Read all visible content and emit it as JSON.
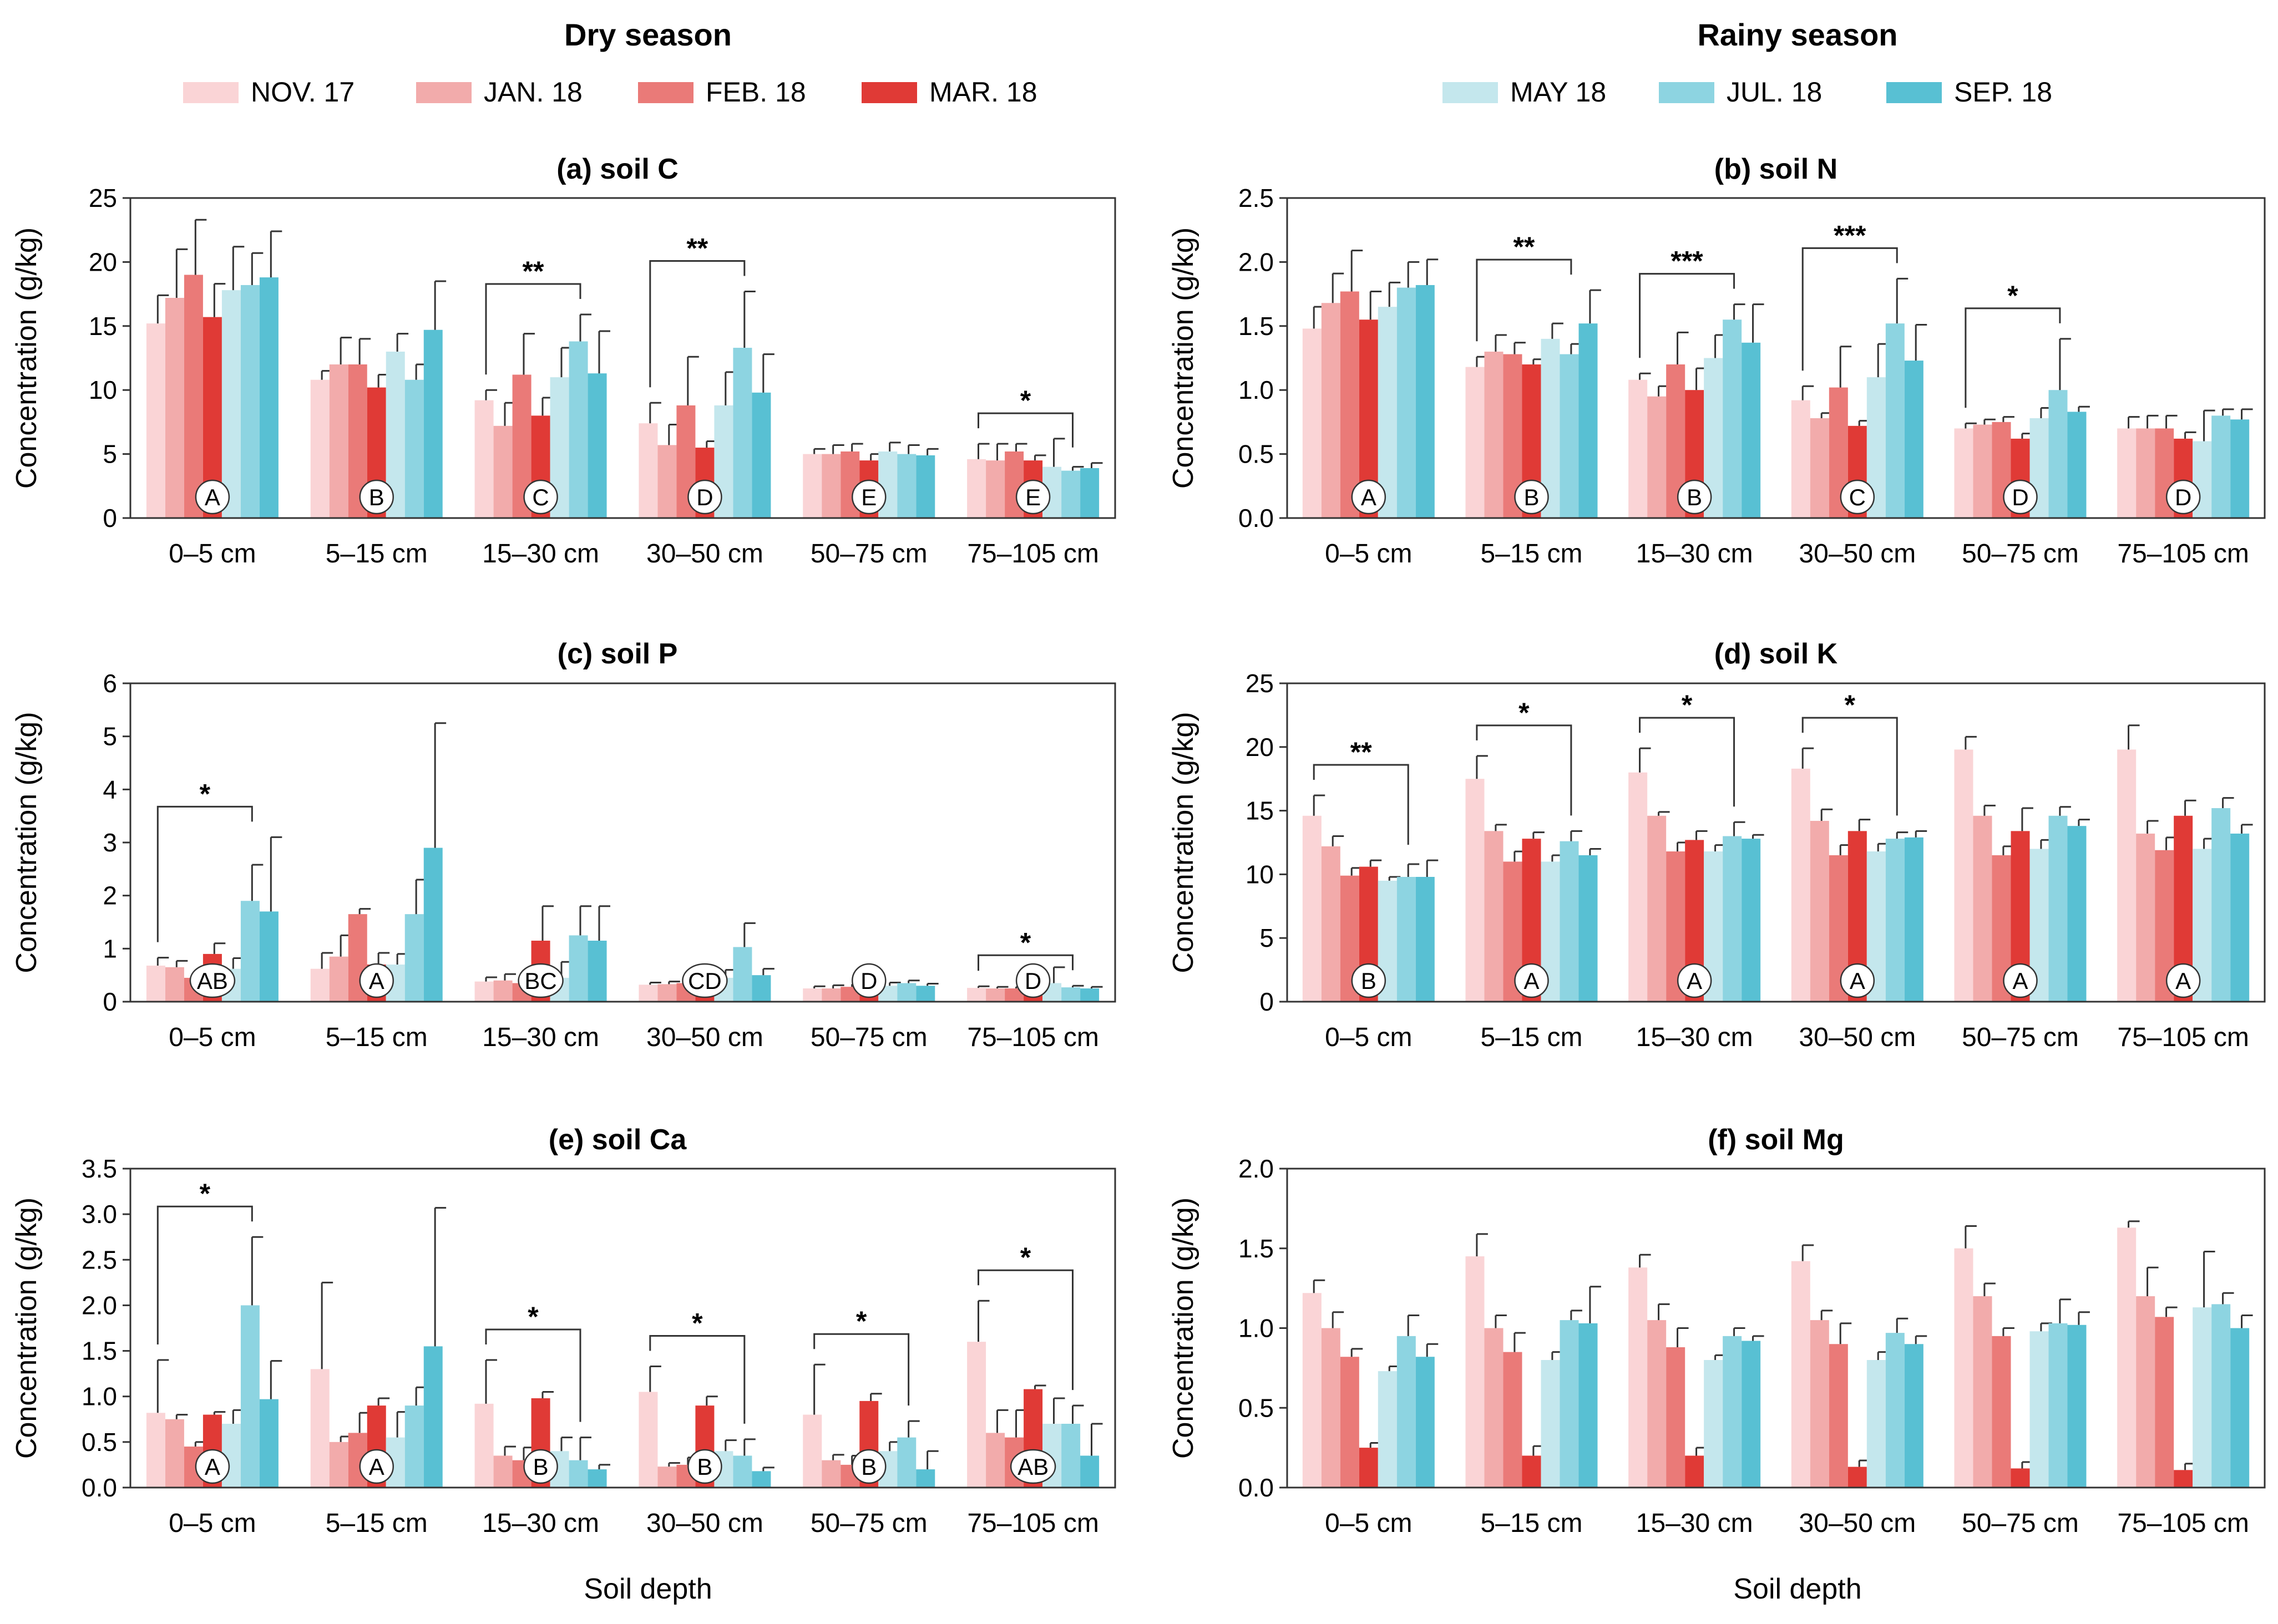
{
  "seasons": {
    "dry": {
      "title": "Dry season",
      "items": [
        {
          "label": "NOV. 17",
          "color": "#fad4d6"
        },
        {
          "label": "JAN. 18",
          "color": "#f2abab"
        },
        {
          "label": "FEB. 18",
          "color": "#ea7a78"
        },
        {
          "label": "MAR. 18",
          "color": "#e03a36"
        }
      ]
    },
    "rainy": {
      "title": "Rainy season",
      "items": [
        {
          "label": "MAY 18",
          "color": "#c4e7ed"
        },
        {
          "label": "JUL. 18",
          "color": "#8dd4e1"
        },
        {
          "label": "SEP. 18",
          "color": "#58c0d3"
        }
      ]
    }
  },
  "xlabel_common": "Soil depth",
  "chart_data": [
    {
      "type": "bar",
      "title": "(a) soil C",
      "ylabel": "Concentration (g/kg)",
      "ylim": [
        0,
        25
      ],
      "yticks": [
        "0",
        "5",
        "10",
        "15",
        "20",
        "25"
      ],
      "categories": [
        "0–5 cm",
        "5–15 cm",
        "15–30 cm",
        "30–50 cm",
        "50–75 cm",
        "75–105 cm"
      ],
      "series": [
        {
          "name": "NOV. 17",
          "values": [
            15.2,
            10.8,
            9.2,
            7.4,
            5.0,
            4.6
          ],
          "errors": [
            2.2,
            0.7,
            0.8,
            1.6,
            0.4,
            1.2
          ]
        },
        {
          "name": "JAN. 18",
          "values": [
            17.2,
            12.0,
            7.2,
            5.7,
            5.0,
            4.5
          ],
          "errors": [
            3.8,
            2.1,
            1.8,
            1.6,
            0.7,
            1.3
          ]
        },
        {
          "name": "FEB. 18",
          "values": [
            19.0,
            12.0,
            11.2,
            8.8,
            5.2,
            5.2
          ],
          "errors": [
            4.3,
            2.0,
            3.2,
            3.8,
            0.6,
            0.6
          ]
        },
        {
          "name": "MAR. 18",
          "values": [
            15.7,
            10.2,
            8.0,
            5.5,
            4.5,
            4.5
          ],
          "errors": [
            2.6,
            1.0,
            1.4,
            0.5,
            0.5,
            0.4
          ]
        },
        {
          "name": "MAY 18",
          "values": [
            17.8,
            13.0,
            11.0,
            8.8,
            5.2,
            4.0
          ],
          "errors": [
            3.4,
            1.4,
            2.3,
            2.6,
            0.7,
            2.2
          ]
        },
        {
          "name": "JUL. 18",
          "values": [
            18.2,
            10.8,
            13.8,
            13.3,
            5.0,
            3.7
          ],
          "errors": [
            2.5,
            1.2,
            2.1,
            4.4,
            0.7,
            0.3
          ]
        },
        {
          "name": "SEP. 18",
          "values": [
            18.8,
            14.7,
            11.3,
            9.8,
            4.9,
            3.9
          ],
          "errors": [
            3.6,
            3.8,
            3.3,
            3.0,
            0.5,
            0.4
          ]
        }
      ],
      "group_letters": [
        "A",
        "B",
        "C",
        "D",
        "E",
        "E"
      ],
      "significance": [
        {
          "category": "15–30 cm",
          "label": "**"
        },
        {
          "category": "30–50 cm",
          "label": "**"
        },
        {
          "category": "75–105 cm",
          "label": "*"
        }
      ]
    },
    {
      "type": "bar",
      "title": "(b) soil N",
      "ylabel": "Concentration (g/kg)",
      "ylim": [
        0,
        2.5
      ],
      "yticks": [
        "0.0",
        "0.5",
        "1.0",
        "1.5",
        "2.0",
        "2.5"
      ],
      "categories": [
        "0–5 cm",
        "5–15 cm",
        "15–30 cm",
        "30–50 cm",
        "50–75 cm",
        "75–105 cm"
      ],
      "series": [
        {
          "name": "NOV. 17",
          "values": [
            1.48,
            1.18,
            1.08,
            0.92,
            0.7,
            0.7
          ],
          "errors": [
            0.17,
            0.08,
            0.05,
            0.11,
            0.04,
            0.09
          ]
        },
        {
          "name": "JAN. 18",
          "values": [
            1.68,
            1.3,
            0.95,
            0.78,
            0.73,
            0.7
          ],
          "errors": [
            0.23,
            0.13,
            0.08,
            0.04,
            0.04,
            0.1
          ]
        },
        {
          "name": "FEB. 18",
          "values": [
            1.77,
            1.28,
            1.2,
            1.02,
            0.75,
            0.7
          ],
          "errors": [
            0.32,
            0.09,
            0.25,
            0.32,
            0.04,
            0.1
          ]
        },
        {
          "name": "MAR. 18",
          "values": [
            1.55,
            1.2,
            1.0,
            0.72,
            0.62,
            0.62
          ],
          "errors": [
            0.22,
            0.04,
            0.17,
            0.04,
            0.04,
            0.05
          ]
        },
        {
          "name": "MAY 18",
          "values": [
            1.65,
            1.4,
            1.25,
            1.1,
            0.78,
            0.6
          ],
          "errors": [
            0.19,
            0.12,
            0.18,
            0.26,
            0.08,
            0.24
          ]
        },
        {
          "name": "JUL. 18",
          "values": [
            1.8,
            1.28,
            1.55,
            1.52,
            1.0,
            0.8
          ],
          "errors": [
            0.2,
            0.08,
            0.12,
            0.35,
            0.4,
            0.05
          ]
        },
        {
          "name": "SEP. 18",
          "values": [
            1.82,
            1.52,
            1.37,
            1.23,
            0.83,
            0.77
          ],
          "errors": [
            0.2,
            0.26,
            0.3,
            0.28,
            0.04,
            0.08
          ]
        }
      ],
      "group_letters": [
        "A",
        "B",
        "B",
        "C",
        "D",
        "D"
      ],
      "significance": [
        {
          "category": "5–15 cm",
          "label": "**"
        },
        {
          "category": "15–30 cm",
          "label": "***"
        },
        {
          "category": "30–50 cm",
          "label": "***"
        },
        {
          "category": "50–75 cm",
          "label": "*"
        }
      ]
    },
    {
      "type": "bar",
      "title": "(c) soil P",
      "ylabel": "Concentration (g/kg)",
      "ylim": [
        0,
        6
      ],
      "yticks": [
        "0",
        "1",
        "2",
        "3",
        "4",
        "5",
        "6"
      ],
      "categories": [
        "0–5 cm",
        "5–15 cm",
        "15–30 cm",
        "30–50 cm",
        "50–75 cm",
        "75–105 cm"
      ],
      "series": [
        {
          "name": "NOV. 17",
          "values": [
            0.68,
            0.62,
            0.38,
            0.32,
            0.25,
            0.26
          ],
          "errors": [
            0.15,
            0.3,
            0.08,
            0.04,
            0.04,
            0.03
          ]
        },
        {
          "name": "JAN. 18",
          "values": [
            0.65,
            0.85,
            0.4,
            0.33,
            0.25,
            0.25
          ],
          "errors": [
            0.12,
            0.4,
            0.12,
            0.05,
            0.06,
            0.03
          ]
        },
        {
          "name": "FEB. 18",
          "values": [
            0.45,
            1.65,
            0.35,
            0.35,
            0.28,
            0.25
          ],
          "errors": [
            0.08,
            0.1,
            0.06,
            0.1,
            0.05,
            0.03
          ]
        },
        {
          "name": "MAR. 18",
          "values": [
            0.9,
            0.7,
            1.15,
            0.3,
            0.25,
            0.25
          ],
          "errors": [
            0.2,
            0.22,
            0.65,
            0.05,
            0.04,
            0.03
          ]
        },
        {
          "name": "MAY 18",
          "values": [
            0.62,
            0.7,
            0.45,
            0.45,
            0.3,
            0.35
          ],
          "errors": [
            0.2,
            0.2,
            0.3,
            0.15,
            0.06,
            0.3
          ]
        },
        {
          "name": "JUL. 18",
          "values": [
            1.9,
            1.65,
            1.25,
            1.03,
            0.35,
            0.27
          ],
          "errors": [
            0.68,
            0.65,
            0.55,
            0.45,
            0.05,
            0.03
          ]
        },
        {
          "name": "SEP. 18",
          "values": [
            1.7,
            2.9,
            1.15,
            0.5,
            0.3,
            0.25
          ],
          "errors": [
            1.4,
            2.35,
            0.65,
            0.12,
            0.04,
            0.03
          ]
        }
      ],
      "group_letters": [
        "AB",
        "A",
        "BC",
        "CD",
        "D",
        "D"
      ],
      "significance": [
        {
          "category": "0–5 cm",
          "label": "*"
        },
        {
          "category": "75–105 cm",
          "label": "*"
        }
      ]
    },
    {
      "type": "bar",
      "title": "(d) soil K",
      "ylabel": "Concentration (g/kg)",
      "ylim": [
        0,
        25
      ],
      "yticks": [
        "0",
        "5",
        "10",
        "15",
        "20",
        "25"
      ],
      "categories": [
        "0–5 cm",
        "5–15 cm",
        "15–30 cm",
        "30–50 cm",
        "50–75 cm",
        "75–105 cm"
      ],
      "series": [
        {
          "name": "NOV. 17",
          "values": [
            14.6,
            17.5,
            18.0,
            18.3,
            19.8,
            19.8
          ],
          "errors": [
            1.6,
            1.8,
            1.9,
            1.6,
            1.0,
            1.9
          ]
        },
        {
          "name": "JAN. 18",
          "values": [
            12.2,
            13.4,
            14.6,
            14.2,
            14.6,
            13.2
          ],
          "errors": [
            0.8,
            0.5,
            0.3,
            0.9,
            0.8,
            1.0
          ]
        },
        {
          "name": "FEB. 18",
          "values": [
            9.9,
            11.0,
            11.8,
            11.5,
            11.5,
            11.9
          ],
          "errors": [
            0.6,
            0.8,
            0.7,
            0.8,
            0.7,
            1.0
          ]
        },
        {
          "name": "MAR. 18",
          "values": [
            10.6,
            12.8,
            12.7,
            13.4,
            13.4,
            14.6
          ],
          "errors": [
            0.5,
            0.5,
            0.7,
            0.9,
            1.8,
            1.2
          ]
        },
        {
          "name": "MAY 18",
          "values": [
            9.5,
            11.0,
            11.8,
            11.8,
            12.0,
            12.0
          ],
          "errors": [
            0.3,
            0.5,
            0.5,
            0.6,
            0.7,
            0.8
          ]
        },
        {
          "name": "JUL. 18",
          "values": [
            9.8,
            12.6,
            13.0,
            12.8,
            14.6,
            15.2
          ],
          "errors": [
            1.0,
            0.8,
            1.1,
            0.5,
            0.7,
            0.8
          ]
        },
        {
          "name": "SEP. 18",
          "values": [
            9.8,
            11.5,
            12.8,
            12.9,
            13.8,
            13.2
          ],
          "errors": [
            1.3,
            0.5,
            0.3,
            0.5,
            0.5,
            0.7
          ]
        }
      ],
      "group_letters": [
        "B",
        "A",
        "A",
        "A",
        "A",
        "A"
      ],
      "significance": [
        {
          "category": "0–5 cm",
          "label": "**"
        },
        {
          "category": "5–15 cm",
          "label": "*"
        },
        {
          "category": "15–30 cm",
          "label": "*"
        },
        {
          "category": "30–50 cm",
          "label": "*"
        }
      ]
    },
    {
      "type": "bar",
      "title": "(e) soil Ca",
      "ylabel": "Concentration (g/kg)",
      "ylim": [
        0,
        3.5
      ],
      "yticks": [
        "0.0",
        "0.5",
        "1.0",
        "1.5",
        "2.0",
        "2.5",
        "3.0",
        "3.5"
      ],
      "categories": [
        "0–5 cm",
        "5–15 cm",
        "15–30 cm",
        "30–50 cm",
        "50–75 cm",
        "75–105 cm"
      ],
      "series": [
        {
          "name": "NOV. 17",
          "values": [
            0.82,
            1.3,
            0.92,
            1.05,
            0.8,
            1.6
          ],
          "errors": [
            0.58,
            0.95,
            0.48,
            0.28,
            0.55,
            0.45
          ]
        },
        {
          "name": "JAN. 18",
          "values": [
            0.75,
            0.5,
            0.35,
            0.23,
            0.3,
            0.6
          ],
          "errors": [
            0.05,
            0.06,
            0.1,
            0.04,
            0.06,
            0.25
          ]
        },
        {
          "name": "FEB. 18",
          "values": [
            0.45,
            0.6,
            0.3,
            0.25,
            0.25,
            0.55
          ],
          "errors": [
            0.05,
            0.22,
            0.14,
            0.08,
            0.1,
            0.3
          ]
        },
        {
          "name": "MAR. 18",
          "values": [
            0.8,
            0.9,
            0.98,
            0.9,
            0.95,
            1.08
          ],
          "errors": [
            0.03,
            0.08,
            0.07,
            0.1,
            0.08,
            0.04
          ]
        },
        {
          "name": "MAY 18",
          "values": [
            0.7,
            0.55,
            0.4,
            0.4,
            0.4,
            0.7
          ],
          "errors": [
            0.15,
            0.28,
            0.15,
            0.12,
            0.1,
            0.28
          ]
        },
        {
          "name": "JUL. 18",
          "values": [
            2.0,
            0.9,
            0.3,
            0.35,
            0.55,
            0.7
          ],
          "errors": [
            0.75,
            0.2,
            0.25,
            0.18,
            0.18,
            0.2
          ]
        },
        {
          "name": "SEP. 18",
          "values": [
            0.97,
            1.55,
            0.2,
            0.18,
            0.2,
            0.35
          ],
          "errors": [
            0.42,
            1.52,
            0.05,
            0.04,
            0.2,
            0.35
          ]
        }
      ],
      "group_letters": [
        "A",
        "A",
        "B",
        "B",
        "B",
        "AB"
      ],
      "significance": [
        {
          "category": "0–5 cm",
          "label": "*"
        },
        {
          "category": "15–30 cm",
          "label": "*"
        },
        {
          "category": "30–50 cm",
          "label": "*"
        },
        {
          "category": "50–75 cm",
          "label": "*"
        },
        {
          "category": "75–105 cm",
          "label": "*"
        }
      ]
    },
    {
      "type": "bar",
      "title": "(f) soil Mg",
      "ylabel": "Concentration (g/kg)",
      "ylim": [
        0,
        2.0
      ],
      "yticks": [
        "0.0",
        "0.5",
        "1.0",
        "1.5",
        "2.0"
      ],
      "categories": [
        "0–5 cm",
        "5–15 cm",
        "15–30 cm",
        "30–50 cm",
        "50–75 cm",
        "75–105 cm"
      ],
      "series": [
        {
          "name": "NOV. 17",
          "values": [
            1.22,
            1.45,
            1.38,
            1.42,
            1.5,
            1.63
          ],
          "errors": [
            0.08,
            0.14,
            0.08,
            0.1,
            0.14,
            0.04
          ]
        },
        {
          "name": "JAN. 18",
          "values": [
            1.0,
            1.0,
            1.05,
            1.05,
            1.2,
            1.2
          ],
          "errors": [
            0.1,
            0.08,
            0.1,
            0.06,
            0.08,
            0.18
          ]
        },
        {
          "name": "FEB. 18",
          "values": [
            0.82,
            0.85,
            0.88,
            0.9,
            0.95,
            1.07
          ],
          "errors": [
            0.05,
            0.12,
            0.12,
            0.13,
            0.05,
            0.06
          ]
        },
        {
          "name": "MAR. 18",
          "values": [
            0.25,
            0.2,
            0.2,
            0.13,
            0.12,
            0.11
          ],
          "errors": [
            0.03,
            0.06,
            0.05,
            0.04,
            0.04,
            0.04
          ]
        },
        {
          "name": "MAY 18",
          "values": [
            0.73,
            0.8,
            0.8,
            0.8,
            0.98,
            1.13
          ],
          "errors": [
            0.03,
            0.05,
            0.03,
            0.05,
            0.05,
            0.35
          ]
        },
        {
          "name": "JUL. 18",
          "values": [
            0.95,
            1.05,
            0.95,
            0.97,
            1.03,
            1.15
          ],
          "errors": [
            0.13,
            0.06,
            0.05,
            0.09,
            0.15,
            0.07
          ]
        },
        {
          "name": "SEP. 18",
          "values": [
            0.82,
            1.03,
            0.92,
            0.9,
            1.02,
            1.0
          ],
          "errors": [
            0.08,
            0.23,
            0.03,
            0.05,
            0.08,
            0.08
          ]
        }
      ],
      "group_letters": [],
      "significance": []
    }
  ]
}
